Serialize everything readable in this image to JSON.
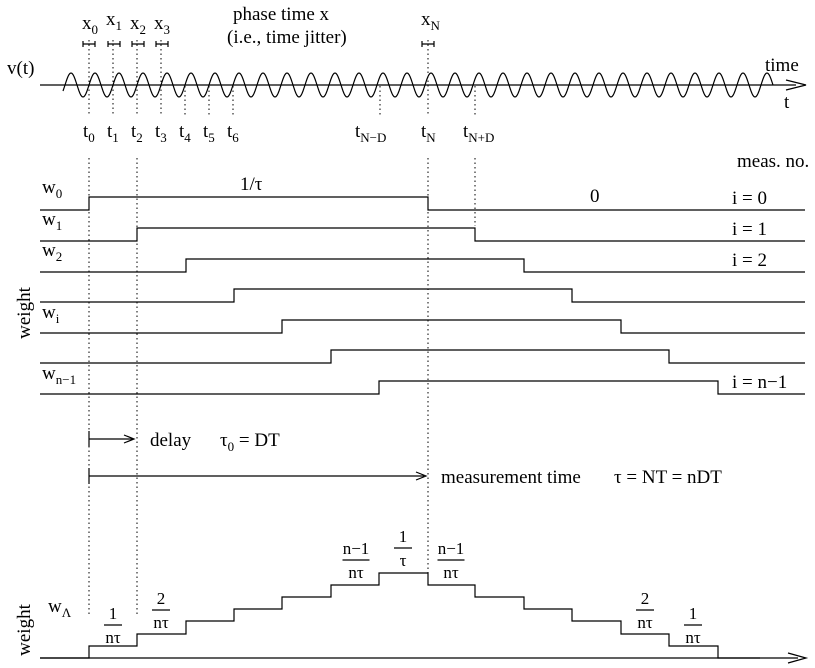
{
  "signal": {
    "phase_caption_line1": "phase time x",
    "phase_caption_line2": "(i.e., time jitter)",
    "y_label": "v(t)",
    "axis_label_time": "time",
    "axis_label_t": "t",
    "x_labels": [
      {
        "b": "x",
        "s": "0"
      },
      {
        "b": "x",
        "s": "1"
      },
      {
        "b": "x",
        "s": "2"
      },
      {
        "b": "x",
        "s": "3"
      },
      {
        "b": "x",
        "s": "N"
      }
    ],
    "t_labels": [
      {
        "b": "t",
        "s": "0"
      },
      {
        "b": "t",
        "s": "1"
      },
      {
        "b": "t",
        "s": "2"
      },
      {
        "b": "t",
        "s": "3"
      },
      {
        "b": "t",
        "s": "4"
      },
      {
        "b": "t",
        "s": "5"
      },
      {
        "b": "t",
        "s": "6"
      },
      {
        "b": "t",
        "s": "N−D"
      },
      {
        "b": "t",
        "s": "N"
      },
      {
        "b": "t",
        "s": "N+D"
      }
    ]
  },
  "weights": {
    "axis_label": "weight",
    "meas_header": "meas. no.",
    "value_high": "1/τ",
    "value_low": "0",
    "row_labels": [
      {
        "b": "w",
        "s": "0"
      },
      {
        "b": "w",
        "s": "1"
      },
      {
        "b": "w",
        "s": "2"
      },
      {
        "b": "w",
        "s": "i"
      },
      {
        "b": "w",
        "s": "n−1"
      }
    ],
    "index_labels": [
      "i = 0",
      "i = 1",
      "i = 2",
      "i = n−1"
    ]
  },
  "timing": {
    "delay_label": "delay",
    "delay_eq_base": "τ",
    "delay_eq_sub": "0",
    "delay_eq_rest": " = DT",
    "measurement_label": "measurement time",
    "measurement_eq": "τ = NT = nDT"
  },
  "lambda_weight": {
    "axis_label": "weight",
    "label_base": "w",
    "label_sub": "Λ",
    "steps": [
      {
        "num": "1",
        "den": "nτ"
      },
      {
        "num": "2",
        "den": "nτ"
      },
      {
        "num": "n−1",
        "den": "nτ"
      },
      {
        "num": "1",
        "den": "τ"
      },
      {
        "num": "n−1",
        "den": "nτ"
      },
      {
        "num": "2",
        "den": "nτ"
      },
      {
        "num": "1",
        "den": "nτ"
      }
    ]
  }
}
